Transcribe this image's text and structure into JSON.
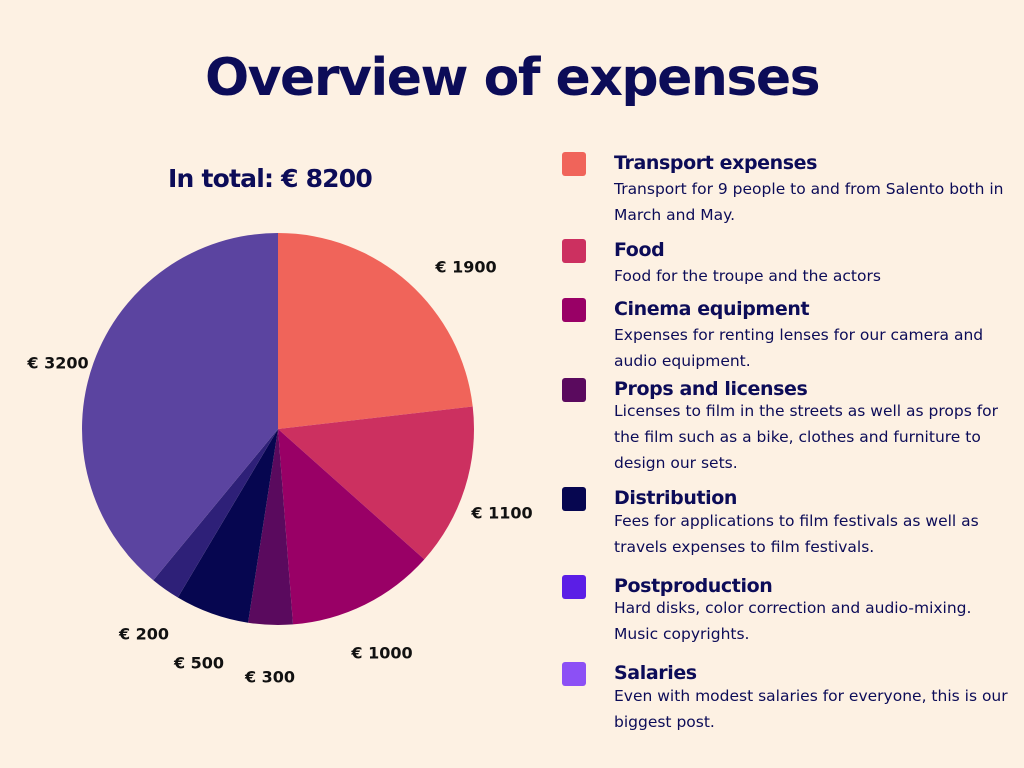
{
  "title": "Overview of expenses",
  "subtitle": "In total: € 8200",
  "legend": [
    {
      "name": "Transport expenses",
      "color": "#f0645a",
      "description": "Transport for 9 people to and from Salento both in March and May."
    },
    {
      "name": "Food",
      "color": "#cc3060",
      "description": "Food for the troupe and the actors"
    },
    {
      "name": "Cinema equipment",
      "color": "#990066",
      "description": "Expenses for renting lenses for our camera and audio equipment."
    },
    {
      "name": "Props and licenses",
      "color": "#5a0a5e",
      "description": "Licenses to film in the streets as well as props for the film such as a bike, clothes and furniture to design our sets."
    },
    {
      "name": "Distribution",
      "color": "#060650",
      "description": "Fees for applications to film festivals as well as travels expenses to film festivals."
    },
    {
      "name": "Postproduction",
      "color": "#5b1ee6",
      "description": "Hard disks, color correction and audio-mixing. Music copyrights."
    },
    {
      "name": "Salaries",
      "color": "#8c50f5",
      "description": "Even with modest salaries for everyone, this is our biggest post."
    }
  ],
  "chart_data": {
    "type": "pie",
    "title": "Overview of expenses",
    "subtitle": "In total: € 8200",
    "unit": "€",
    "slices": [
      {
        "label": "€ 1900",
        "value": 1900,
        "color": "#f0645a"
      },
      {
        "label": "€ 1100",
        "value": 1100,
        "color": "#cc3060"
      },
      {
        "label": "€ 1000",
        "value": 1000,
        "color": "#990066"
      },
      {
        "label": "€ 300",
        "value": 300,
        "color": "#5a0a5e"
      },
      {
        "label": "€ 500",
        "value": 500,
        "color": "#060650"
      },
      {
        "label": "€ 200",
        "value": 200,
        "color": "#2e2078"
      },
      {
        "label": "€ 3200",
        "value": 3200,
        "color": "#5b44a0"
      }
    ]
  }
}
